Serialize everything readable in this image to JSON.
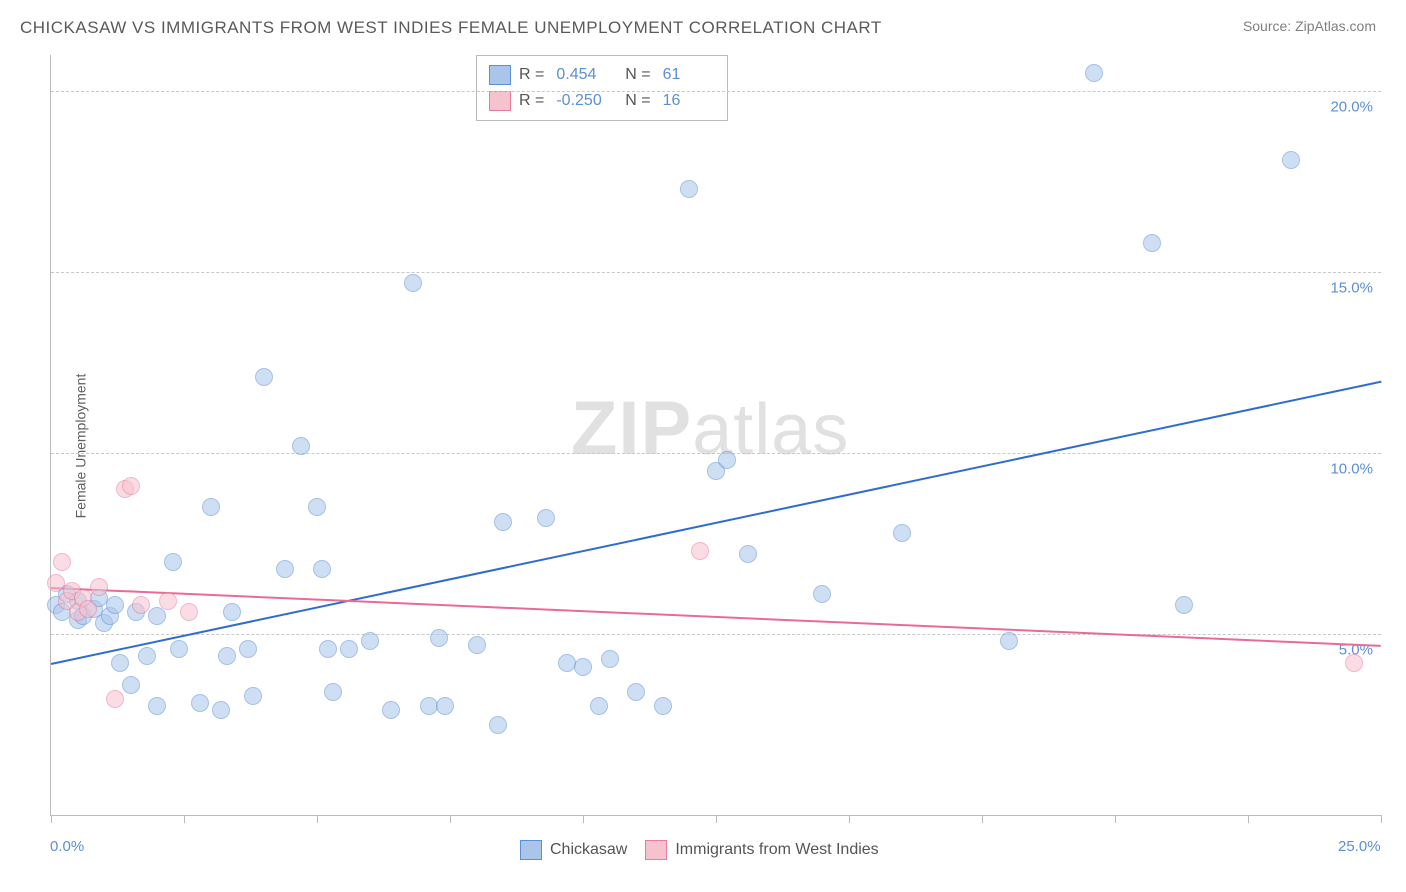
{
  "title": "CHICKASAW VS IMMIGRANTS FROM WEST INDIES FEMALE UNEMPLOYMENT CORRELATION CHART",
  "source": "Source: ZipAtlas.com",
  "ylabel": "Female Unemployment",
  "watermark": "ZIPatlas",
  "chart": {
    "type": "scatter",
    "xlim": [
      0,
      25
    ],
    "ylim": [
      0,
      21
    ],
    "xticks": [
      0,
      2.5,
      5,
      7.5,
      10,
      12.5,
      15,
      17.5,
      20,
      22.5,
      25
    ],
    "xtick_labels": {
      "0": "0.0%",
      "25": "25.0%"
    },
    "yticks": [
      5,
      10,
      15,
      20
    ],
    "ytick_labels": [
      "5.0%",
      "10.0%",
      "15.0%",
      "20.0%"
    ],
    "background_color": "#ffffff",
    "grid_color": "#c8c8c8",
    "axis_color": "#bbbbbb",
    "tick_label_color": "#5b8fd6",
    "point_radius": 9,
    "point_opacity": 0.55,
    "series": [
      {
        "name": "Chickasaw",
        "fill": "#a9c5ea",
        "stroke": "#5b8fd6",
        "r_value": "0.454",
        "n_value": "61",
        "trend": {
          "x1": 0,
          "y1": 4.2,
          "x2": 25,
          "y2": 12.0,
          "color": "#2f6bd1",
          "width": 2
        },
        "points": [
          [
            0.1,
            5.8
          ],
          [
            0.2,
            5.6
          ],
          [
            0.3,
            6.1
          ],
          [
            0.5,
            5.4
          ],
          [
            0.5,
            5.9
          ],
          [
            0.6,
            5.5
          ],
          [
            0.8,
            5.7
          ],
          [
            0.9,
            6.0
          ],
          [
            1.0,
            5.3
          ],
          [
            1.1,
            5.5
          ],
          [
            1.2,
            5.8
          ],
          [
            1.3,
            4.2
          ],
          [
            1.5,
            3.6
          ],
          [
            1.6,
            5.6
          ],
          [
            1.8,
            4.4
          ],
          [
            2.0,
            3.0
          ],
          [
            2.0,
            5.5
          ],
          [
            2.3,
            7.0
          ],
          [
            2.4,
            4.6
          ],
          [
            2.8,
            3.1
          ],
          [
            3.0,
            8.5
          ],
          [
            3.2,
            2.9
          ],
          [
            3.3,
            4.4
          ],
          [
            3.4,
            5.6
          ],
          [
            3.7,
            4.6
          ],
          [
            3.8,
            3.3
          ],
          [
            4.0,
            12.1
          ],
          [
            4.4,
            6.8
          ],
          [
            4.7,
            10.2
          ],
          [
            5.0,
            8.5
          ],
          [
            5.1,
            6.8
          ],
          [
            5.2,
            4.6
          ],
          [
            5.3,
            3.4
          ],
          [
            5.6,
            4.6
          ],
          [
            6.0,
            4.8
          ],
          [
            6.4,
            2.9
          ],
          [
            6.8,
            14.7
          ],
          [
            7.1,
            3.0
          ],
          [
            7.3,
            4.9
          ],
          [
            7.4,
            3.0
          ],
          [
            8.0,
            4.7
          ],
          [
            8.4,
            2.5
          ],
          [
            8.5,
            8.1
          ],
          [
            9.3,
            8.2
          ],
          [
            9.7,
            4.2
          ],
          [
            10.0,
            4.1
          ],
          [
            10.3,
            3.0
          ],
          [
            10.5,
            4.3
          ],
          [
            11.0,
            3.4
          ],
          [
            11.5,
            3.0
          ],
          [
            12.0,
            17.3
          ],
          [
            12.5,
            9.5
          ],
          [
            12.7,
            9.8
          ],
          [
            13.1,
            7.2
          ],
          [
            14.5,
            6.1
          ],
          [
            16.0,
            7.8
          ],
          [
            18.0,
            4.8
          ],
          [
            19.6,
            20.5
          ],
          [
            20.7,
            15.8
          ],
          [
            21.3,
            5.8
          ],
          [
            23.3,
            18.1
          ]
        ]
      },
      {
        "name": "Immigrants from West Indies",
        "fill": "#f6c2ce",
        "stroke": "#ea7aa0",
        "r_value": "-0.250",
        "n_value": "16",
        "trend": {
          "x1": 0,
          "y1": 6.3,
          "x2": 25,
          "y2": 4.7,
          "color": "#e86b95",
          "width": 2
        },
        "points": [
          [
            0.1,
            6.4
          ],
          [
            0.2,
            7.0
          ],
          [
            0.3,
            5.9
          ],
          [
            0.4,
            6.2
          ],
          [
            0.5,
            5.6
          ],
          [
            0.6,
            6.0
          ],
          [
            0.7,
            5.7
          ],
          [
            0.9,
            6.3
          ],
          [
            1.2,
            3.2
          ],
          [
            1.4,
            9.0
          ],
          [
            1.5,
            9.1
          ],
          [
            1.7,
            5.8
          ],
          [
            2.2,
            5.9
          ],
          [
            2.6,
            5.6
          ],
          [
            12.2,
            7.3
          ],
          [
            24.5,
            4.2
          ]
        ]
      }
    ],
    "legend_bottom": [
      {
        "label": "Chickasaw",
        "fill": "#a9c5ea",
        "stroke": "#5b8fd6"
      },
      {
        "label": "Immigrants from West Indies",
        "fill": "#f6c2ce",
        "stroke": "#ea7aa0"
      }
    ]
  }
}
